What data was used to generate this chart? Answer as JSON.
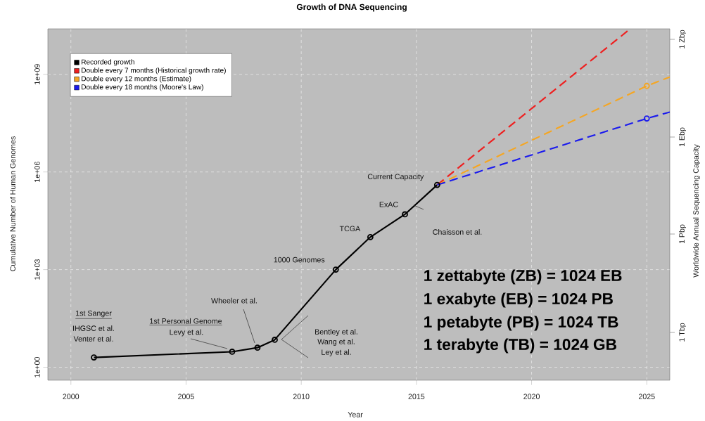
{
  "chart_data": {
    "type": "line",
    "title": "Growth of DNA Sequencing",
    "xlabel": "Year",
    "ylabel": "Cumulative Number of Human Genomes",
    "y2label": "Worldwide Annual Sequencing Capacity",
    "xlim": [
      1999,
      2026
    ],
    "xticks": [
      2000,
      2005,
      2010,
      2015,
      2020,
      2025
    ],
    "ylim": [
      0.4,
      25000000000
    ],
    "yticks": [
      {
        "value": 1,
        "label": "1e+00"
      },
      {
        "value": 1000,
        "label": "1e+03"
      },
      {
        "value": 1000000,
        "label": "1e+06"
      },
      {
        "value": 1000000000,
        "label": "1e+09"
      }
    ],
    "log": "y",
    "grid": true,
    "legend": "top left",
    "series": [
      {
        "name": "Recorded growth",
        "color": "#000000",
        "marker": "circle",
        "line_style": "solid",
        "x": [
          2001,
          2007,
          2008.1,
          2008.85,
          2011.5,
          2013,
          2014.5,
          2015.9
        ],
        "values": [
          2,
          3,
          4,
          7,
          1000,
          10000,
          50000,
          400000
        ]
      },
      {
        "name": "Double every 7 months (Historical growth rate)",
        "color": "#ee2020",
        "line_style": "dashed",
        "x": [
          2015.9,
          2024.25
        ],
        "values": [
          400000,
          24000000000
        ]
      },
      {
        "name": "Double every 12 months (Estimate)",
        "color": "#f5a623",
        "line_style": "dashed",
        "x": [
          2015.9,
          2025,
          2026
        ],
        "values": [
          400000,
          440000000,
          830000000
        ]
      },
      {
        "name": "Double every 18 months (Moore's Law)",
        "color": "#1a1aee",
        "line_style": "dashed",
        "x": [
          2015.9,
          2025,
          2026
        ],
        "values": [
          400000,
          44000000,
          69000000
        ]
      },
      {
        "type": "scatter",
        "color": "#f5a623",
        "marker": "circle",
        "x": [
          2025
        ],
        "values": [
          440000000
        ]
      },
      {
        "type": "scatter",
        "color": "#1a1aee",
        "marker": "circle",
        "x": [
          2025
        ],
        "values": [
          44000000
        ]
      }
    ],
    "annotations": [
      {
        "text": "Current Capacity",
        "x": 2015.9,
        "y": 400000
      },
      {
        "text": "ExAC",
        "x": 2014.5,
        "y": 50000
      },
      {
        "text": "TCGA",
        "x": 2013,
        "y": 10000
      },
      {
        "text": "1000 Genomes",
        "x": 2011.5,
        "y": 1000
      },
      "1st Sanger",
      "IHGSC et al.",
      "Venter et al.",
      "1st Personal Genome",
      {
        "text": "Levy et al.",
        "x": 2007,
        "y": 3
      },
      {
        "text": "Wheeler et al.",
        "x": 2008.1,
        "y": 4
      },
      "Bentley et al.",
      "Wang et al.",
      "Ley et al.",
      "Chaisson et al.",
      "1 zettabyte (ZB) = 1024 EB",
      "1 exabyte (EB) = 1024 PB",
      "1 petabyte (PB) = 1024 TB",
      "1 terabyte (TB) = 1024 GB",
      "1 Tbp",
      "1 Pbp",
      "1 Ebp",
      "1 Zbp"
    ]
  }
}
